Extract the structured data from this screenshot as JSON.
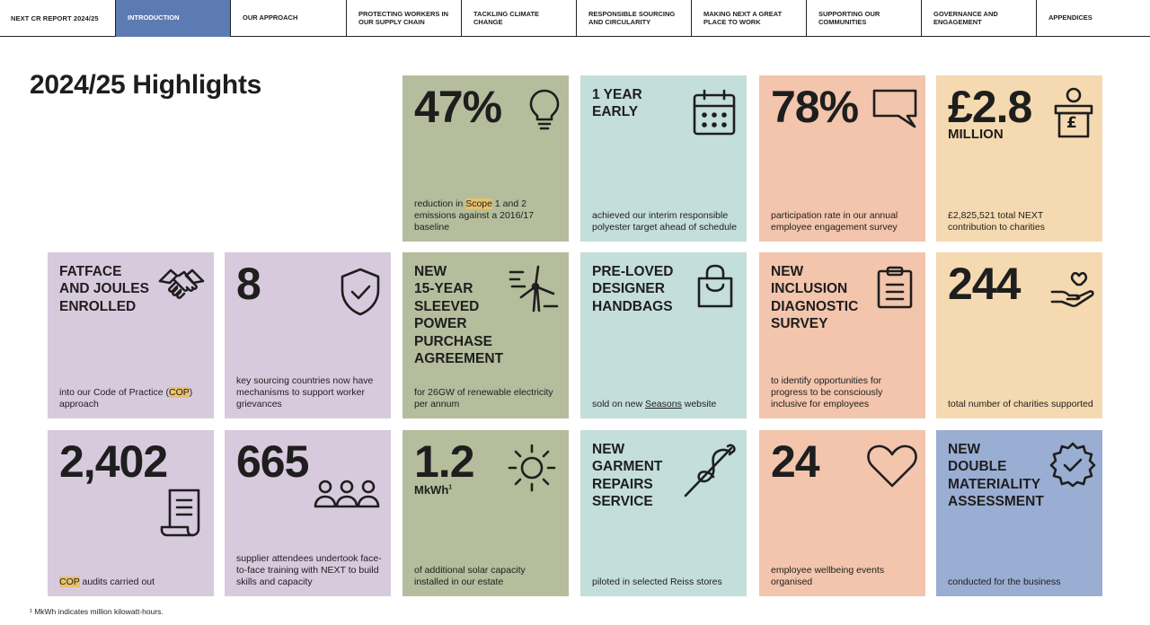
{
  "nav": {
    "report_title": "NEXT CR REPORT 2024/25",
    "tabs": [
      {
        "label": "INTRODUCTION"
      },
      {
        "label": "OUR APPROACH"
      },
      {
        "label": "PROTECTING WORKERS IN OUR SUPPLY CHAIN"
      },
      {
        "label": "TACKLING CLIMATE CHANGE"
      },
      {
        "label": "RESPONSIBLE SOURCING AND CIRCULARITY"
      },
      {
        "label": "MAKING NEXT A GREAT PLACE TO WORK"
      },
      {
        "label": "SUPPORTING OUR COMMUNITIES"
      },
      {
        "label": "GOVERNANCE AND ENGAGEMENT"
      },
      {
        "label": "APPENDICES"
      }
    ]
  },
  "page": {
    "title": "2024/25 Highlights",
    "footnote": "¹ MkWh indicates million kilowatt-hours."
  },
  "tiles": {
    "scope": {
      "big": "47%",
      "desc_pre": "reduction in ",
      "desc_hl": "Scope",
      "desc_post": " 1 and 2 emissions against a 2016/17 baseline",
      "icon": "lightbulb-icon"
    },
    "polyester": {
      "head_line1": "1 YEAR",
      "head_line2": "EARLY",
      "desc": "achieved our interim responsible polyester target ahead of schedule",
      "icon": "calendar-icon"
    },
    "engagement": {
      "big": "78%",
      "desc": "participation rate in our annual employee engagement survey",
      "icon": "speech-bubble-icon"
    },
    "charity_money": {
      "big": "£2.8",
      "unit": "MILLION",
      "desc": "£2,825,521 total NEXT contribution to charities",
      "icon": "donation-box-icon",
      "icon_glyph": "£"
    },
    "fatface": {
      "head_line1": "FATFACE",
      "head_line2": "AND JOULES",
      "head_line3": "ENROLLED",
      "desc_pre": "into our Code of Practice (",
      "desc_hl": "COP",
      "desc_post": ") approach",
      "icon": "handshake-icon"
    },
    "grievance": {
      "big": "8",
      "desc": "key sourcing countries now have mechanisms to support worker grievances",
      "icon": "shield-check-icon"
    },
    "ppa": {
      "head_line1": "NEW",
      "head_line2": "15-YEAR",
      "head_line3": "SLEEVED",
      "head_line4": "POWER",
      "head_line5": "PURCHASE",
      "head_line6": "AGREEMENT",
      "desc": "for 26GW of renewable electricity per annum",
      "icon": "wind-turbine-icon"
    },
    "handbags": {
      "head_line1": "PRE-LOVED",
      "head_line2": "DESIGNER",
      "head_line3": "HANDBAGS",
      "desc_pre": "sold on new ",
      "desc_link": "Seasons",
      "desc_post": " website",
      "icon": "shopping-bag-icon"
    },
    "inclusion": {
      "head_line1": "NEW",
      "head_line2": "INCLUSION",
      "head_line3": "DIAGNOSTIC",
      "head_line4": "SURVEY",
      "desc": "to identify opportunities for progress to be consciously inclusive for employees",
      "icon": "clipboard-icon"
    },
    "charities": {
      "big": "244",
      "desc": "total number of charities supported",
      "icon": "hand-heart-icon"
    },
    "audits": {
      "big": "2,402",
      "desc_hl": "COP",
      "desc_post": " audits carried out",
      "icon": "document-icon"
    },
    "training": {
      "big": "665",
      "desc": "supplier attendees undertook face-to-face training with NEXT to build skills and capacity",
      "icon": "people-group-icon"
    },
    "solar": {
      "big": "1.2",
      "unit": "MkWh",
      "unit_sup": "1",
      "desc": "of additional solar capacity installed in our estate",
      "icon": "sun-icon"
    },
    "repairs": {
      "head_line1": "NEW",
      "head_line2": "GARMENT",
      "head_line3": "REPAIRS",
      "head_line4": "SERVICE",
      "desc": "piloted in selected Reiss stores",
      "icon": "needle-thread-icon"
    },
    "wellbeing": {
      "big": "24",
      "desc": "employee wellbeing events organised",
      "icon": "heart-icon"
    },
    "materiality": {
      "head_line1": "NEW",
      "head_line2": "DOUBLE",
      "head_line3": "MATERIALITY",
      "head_line4": "ASSESSMENT",
      "desc": "conducted for the business",
      "icon": "badge-check-icon"
    }
  },
  "colors": {
    "green": "#b5bd9c",
    "teal": "#c3dedb",
    "salmon": "#f2c5ac",
    "peach": "#f5d9b0",
    "lilac": "#d8cadd",
    "blue": "#9aadd2",
    "nav_active": "#5c7bb3",
    "highlight": "#e8c16a"
  }
}
